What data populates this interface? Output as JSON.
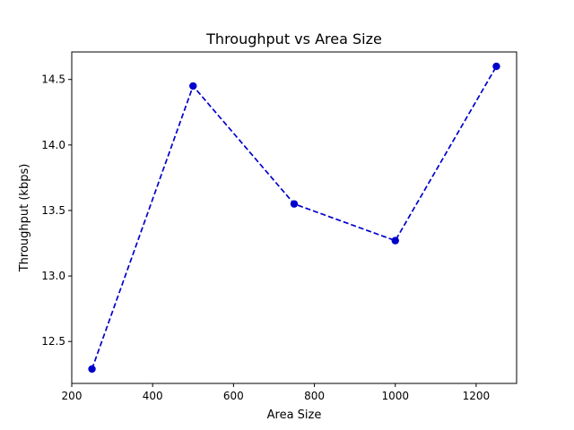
{
  "chart_data": {
    "type": "line",
    "title": "Throughput vs Area Size",
    "xlabel": "Area Size",
    "ylabel": "Throughput (kbps)",
    "xlim": [
      200,
      1300
    ],
    "ylim": [
      12.18,
      14.71
    ],
    "xticks": [
      200,
      400,
      600,
      800,
      1000,
      1200
    ],
    "xtick_labels": [
      "200",
      "400",
      "600",
      "800",
      "1000",
      "1200"
    ],
    "yticks": [
      12.5,
      13.0,
      13.5,
      14.0,
      14.5
    ],
    "ytick_labels": [
      "12.5",
      "13.0",
      "13.5",
      "14.0",
      "14.5"
    ],
    "grid": false,
    "series": [
      {
        "x": [
          250,
          500,
          750,
          1000,
          1250
        ],
        "y": [
          12.29,
          14.45,
          13.55,
          13.27,
          14.6
        ],
        "color": "#0000cc",
        "line_style": "dashed",
        "marker": "circle"
      }
    ]
  }
}
